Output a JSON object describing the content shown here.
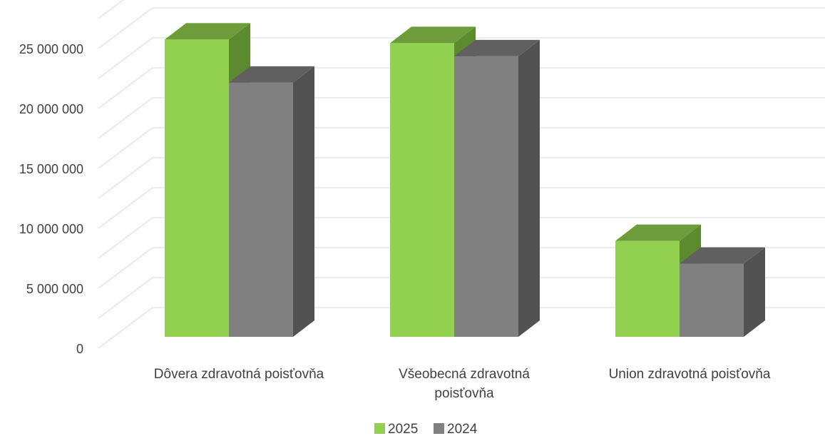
{
  "chart_data": {
    "type": "bar",
    "title": "",
    "xlabel": "",
    "ylabel": "",
    "ylim": [
      0,
      25000000
    ],
    "y_ticks": [
      "0",
      "5 000 000",
      "10 000 000",
      "15 000 000",
      "20 000 000",
      "25 000 000"
    ],
    "categories": [
      [
        "Dôvera zdravotná poisťovňa"
      ],
      [
        "Všeobecná zdravotná",
        "poisťovňa"
      ],
      [
        "Union zdravotná poisťovňa"
      ]
    ],
    "series": [
      {
        "name": "2025",
        "values": [
          24800000,
          24500000,
          8000000
        ]
      },
      {
        "name": "2024",
        "values": [
          21200000,
          23400000,
          6100000
        ]
      }
    ],
    "grid": true,
    "legend": "bottom",
    "style": "3d-clustered-column",
    "colors": {
      "2025": {
        "front": "#92D050",
        "top": "#6E9C3B",
        "side": "#5B8A2F"
      },
      "2024": {
        "front": "#808080",
        "top": "#606060",
        "side": "#525252"
      },
      "grid": "#D9D9D9",
      "text": "#404040"
    }
  }
}
